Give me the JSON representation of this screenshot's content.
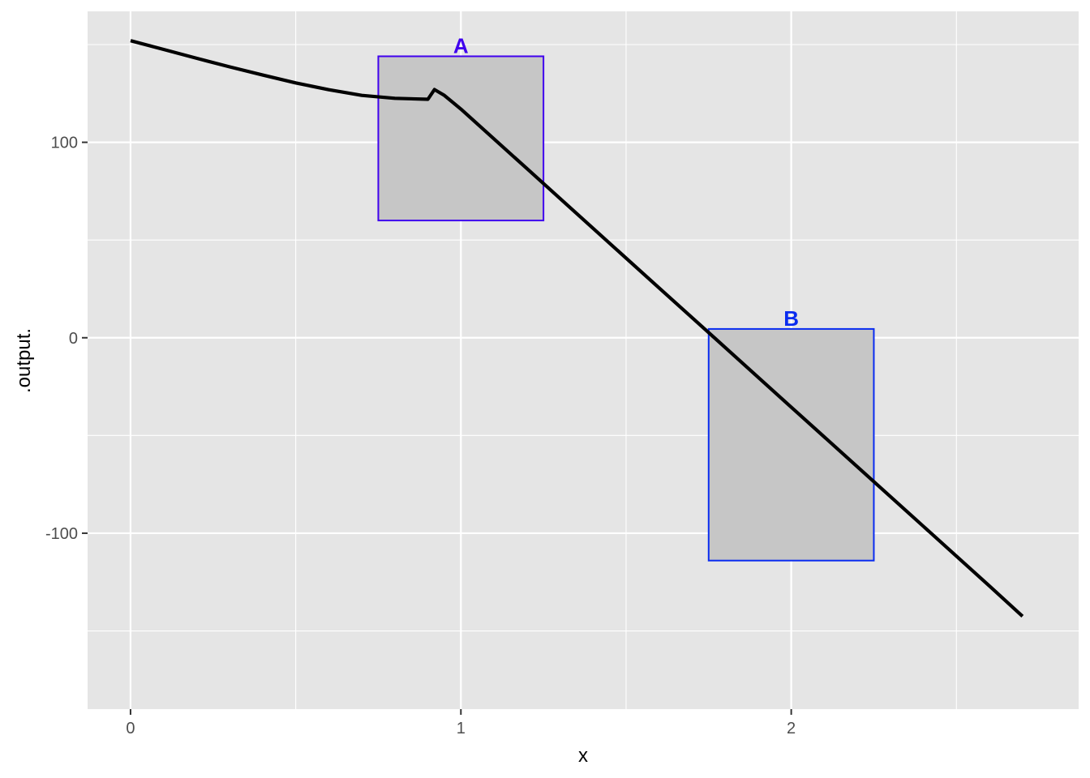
{
  "chart_data": {
    "type": "line",
    "xlabel": "x",
    "ylabel": ".output.",
    "xlim": [
      -0.13,
      2.87
    ],
    "ylim": [
      -190,
      167
    ],
    "x_ticks": [
      0,
      1,
      2
    ],
    "x_tick_labels": [
      "0",
      "1",
      "2"
    ],
    "x_minor_ticks": [
      0.5,
      1.5,
      2.5
    ],
    "y_ticks": [
      -100,
      0,
      100
    ],
    "y_tick_labels": [
      "-100",
      "0",
      "100"
    ],
    "y_minor_ticks": [
      -150,
      -50,
      50,
      150
    ],
    "grid": true,
    "panel_background": "#e5e5e5",
    "grid_color": "#ffffff",
    "line_color": "#000000",
    "series": [
      {
        "x": [
          0,
          0.1,
          0.2,
          0.3,
          0.4,
          0.5,
          0.6,
          0.7,
          0.8,
          0.9,
          0.92,
          0.95,
          1.0,
          1.2,
          1.4,
          1.6,
          1.8,
          2.0,
          2.2,
          2.4,
          2.6,
          2.7
        ],
        "values": [
          152,
          147.5,
          143,
          138.6,
          134.4,
          130.4,
          126.9,
          124,
          122.5,
          122,
          127,
          124,
          117,
          86.5,
          56,
          25.5,
          -5,
          -35.5,
          -66,
          -96.5,
          -127,
          -142.5
        ]
      }
    ],
    "rects": [
      {
        "label": "A",
        "xmin": 0.75,
        "xmax": 1.25,
        "ymin": 60,
        "ymax": 144,
        "color": "#4000ee",
        "fill": "#c6c6c6"
      },
      {
        "label": "B",
        "xmin": 1.75,
        "xmax": 2.25,
        "ymin": -114,
        "ymax": 4.5,
        "color": "#0a2cf0",
        "fill": "#c6c6c6"
      }
    ]
  }
}
